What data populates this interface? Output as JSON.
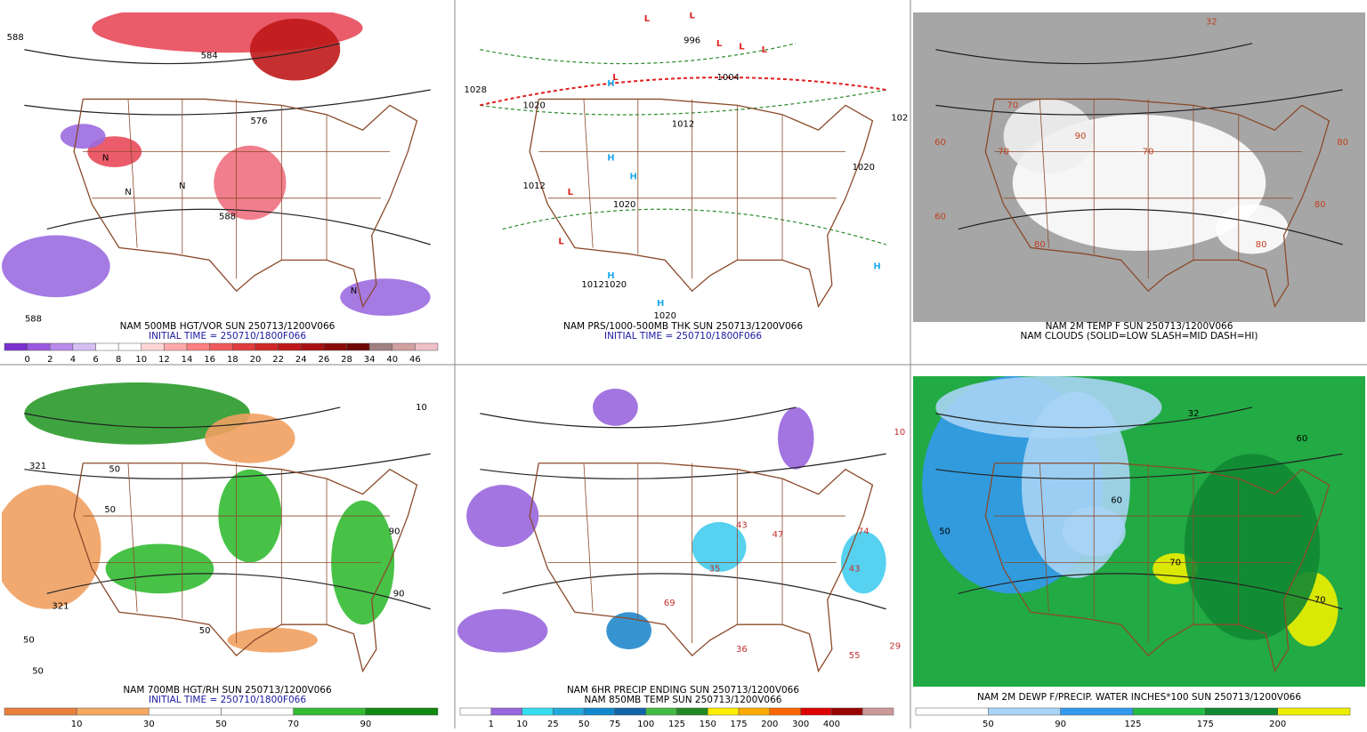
{
  "panels": [
    {
      "caption": [
        "NAM 500MB HGT/VOR SUN 250713/1200V066",
        "INITIAL TIME = 250710/1800F066"
      ],
      "colorbar": {
        "colors": [
          "#7a2fd0",
          "#9b59e0",
          "#b98aeb",
          "#d6bff3",
          "#ffffff",
          "#ffffff",
          "#ffd6d6",
          "#ffaaaa",
          "#ff8080",
          "#f05a5a",
          "#e03c3c",
          "#d02828",
          "#c01818",
          "#a81010",
          "#8a0a0a",
          "#6e0606",
          "#a08080",
          "#d0a0a0",
          "#f0c0c8"
        ],
        "labels": [
          "0",
          "2",
          "4",
          "6",
          "8",
          "10",
          "12",
          "14",
          "16",
          "18",
          "20",
          "22",
          "24",
          "26",
          "28",
          "34",
          "40",
          "46"
        ]
      },
      "map_labels": [
        "588",
        "584",
        "576",
        "588",
        "N",
        "N",
        "N",
        "N",
        "588"
      ]
    },
    {
      "caption": [
        "NAM PRS/1000-500MB THK SUN 250713/1200V066",
        "INITIAL TIME = 250710/1800F066"
      ],
      "map_labels": [
        "L",
        "L",
        "996",
        "L",
        "L",
        "L",
        "1004",
        "L",
        "1028",
        "1020",
        "1012",
        "1012",
        "1020",
        "1020",
        "1012",
        "1020",
        "1020",
        "102",
        "H",
        "H",
        "H",
        "H",
        "H",
        "H",
        "L",
        "L"
      ]
    },
    {
      "caption": [
        "NAM 2M TEMP F SUN 250713/1200V066",
        "NAM CLOUDS (SOLID=LOW SLASH=MID DASH=HI)"
      ],
      "map_labels": [
        "60",
        "70",
        "80",
        "90",
        "70",
        "80",
        "80",
        "80",
        "70",
        "60",
        "32"
      ]
    },
    {
      "caption": [
        "NAM 700MB HGT/RH SUN 250713/1200V066",
        "INITIAL TIME = 250710/1800F066"
      ],
      "colorbar": {
        "colors": [
          "#e8803c",
          "#f5a860",
          "#ffffff",
          "#ffffff",
          "#33bb33",
          "#118811"
        ],
        "labels": [
          "10",
          "30",
          "50",
          "70",
          "90"
        ]
      },
      "map_labels": [
        "321",
        "50",
        "50",
        "90",
        "50",
        "321",
        "50",
        "90",
        "50",
        "10"
      ]
    },
    {
      "caption": [
        "NAM 6HR PRECIP ENDING SUN 250713/1200V066",
        "NAM 850MB TEMP SUN 250713/1200V066"
      ],
      "colorbar": {
        "colors": [
          "#ffffff",
          "#9966dd",
          "#33ddee",
          "#22aadd",
          "#1188cc",
          "#1166aa",
          "#44bb44",
          "#228822",
          "#ffee00",
          "#ffaa00",
          "#ff6600",
          "#dd0000",
          "#990000",
          "#cc9999"
        ],
        "labels": [
          "1",
          "10",
          "25",
          "50",
          "75",
          "100",
          "125",
          "150",
          "175",
          "200",
          "300",
          "400"
        ]
      },
      "map_labels": [
        "43",
        "47",
        "35",
        "69",
        "36",
        "55",
        "29",
        "74",
        "43",
        "10"
      ]
    },
    {
      "caption": [
        "NAM 2M DEWP F/PRECIP. WATER INCHES*100 SUN 250713/1200V066"
      ],
      "colorbar": {
        "colors": [
          "#ffffff",
          "#a8d4f5",
          "#3399ee",
          "#22bb44",
          "#118833",
          "#eeee00"
        ],
        "labels": [
          "50",
          "90",
          "125",
          "175",
          "200"
        ]
      },
      "map_labels": [
        "50",
        "60",
        "70",
        "32",
        "60",
        "70"
      ]
    }
  ]
}
